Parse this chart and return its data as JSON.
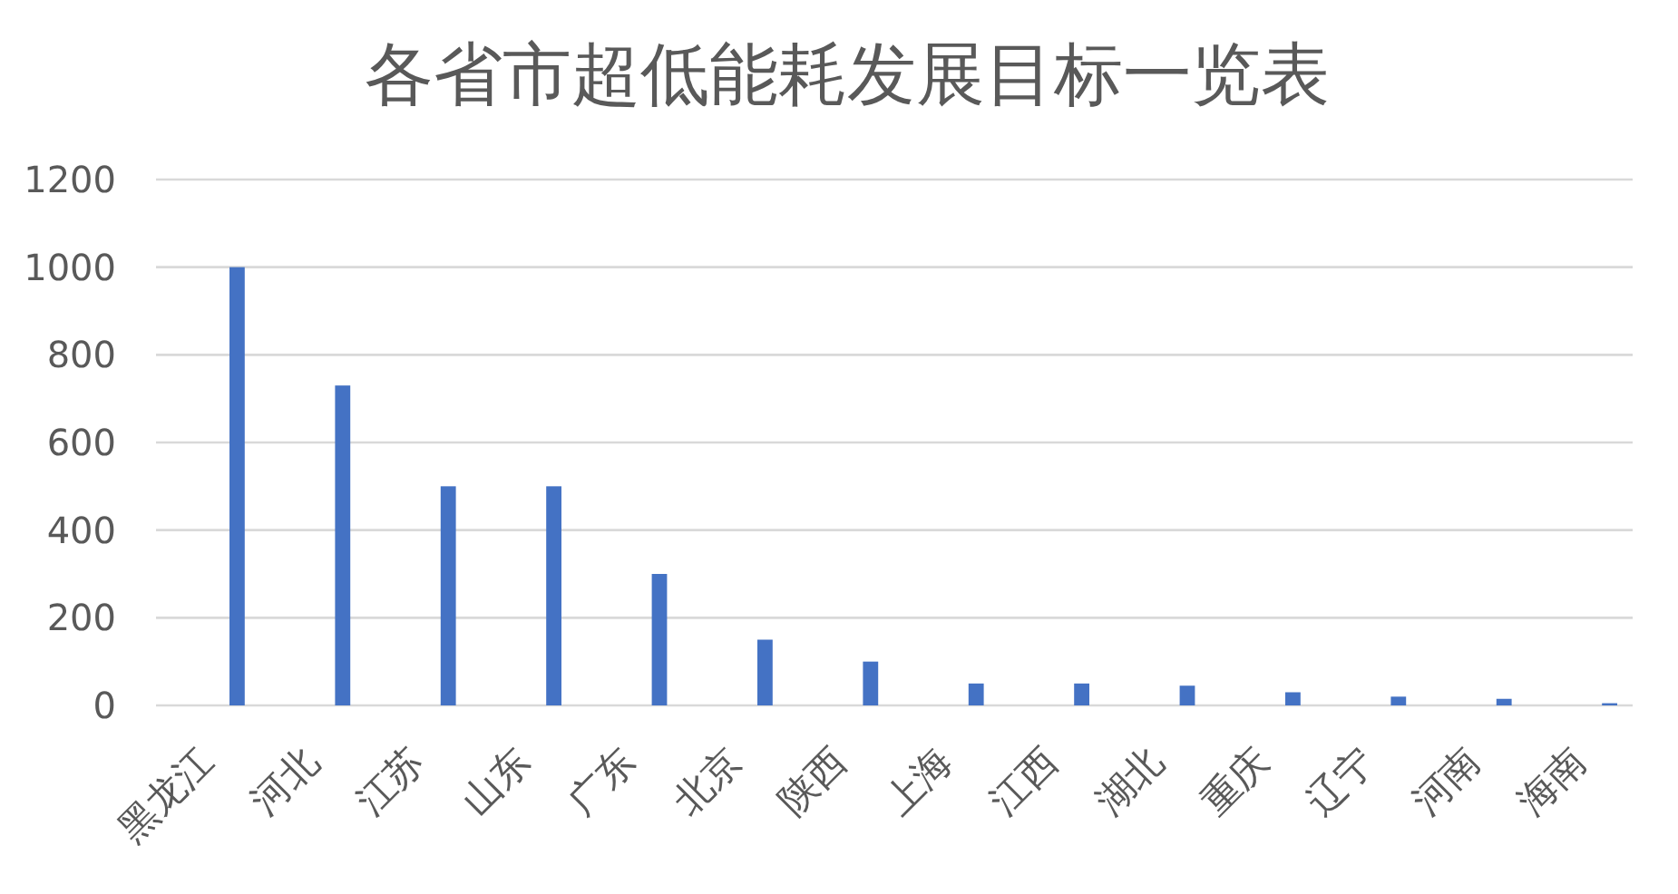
{
  "chart_data": {
    "type": "bar",
    "title": "各省市超低能耗发展目标一览表",
    "categories": [
      "黑龙江",
      "河北",
      "江苏",
      "山东",
      "广东",
      "北京",
      "陕西",
      "上海",
      "江西",
      "湖北",
      "重庆",
      "辽宁",
      "河南",
      "海南"
    ],
    "values": [
      1000,
      730,
      500,
      500,
      300,
      150,
      100,
      50,
      50,
      45,
      30,
      20,
      15,
      5
    ],
    "color": "#4472c4",
    "ylim": [
      0,
      1200
    ],
    "yticks": [
      0,
      200,
      400,
      600,
      800,
      1000,
      1200
    ],
    "grid": "y"
  }
}
